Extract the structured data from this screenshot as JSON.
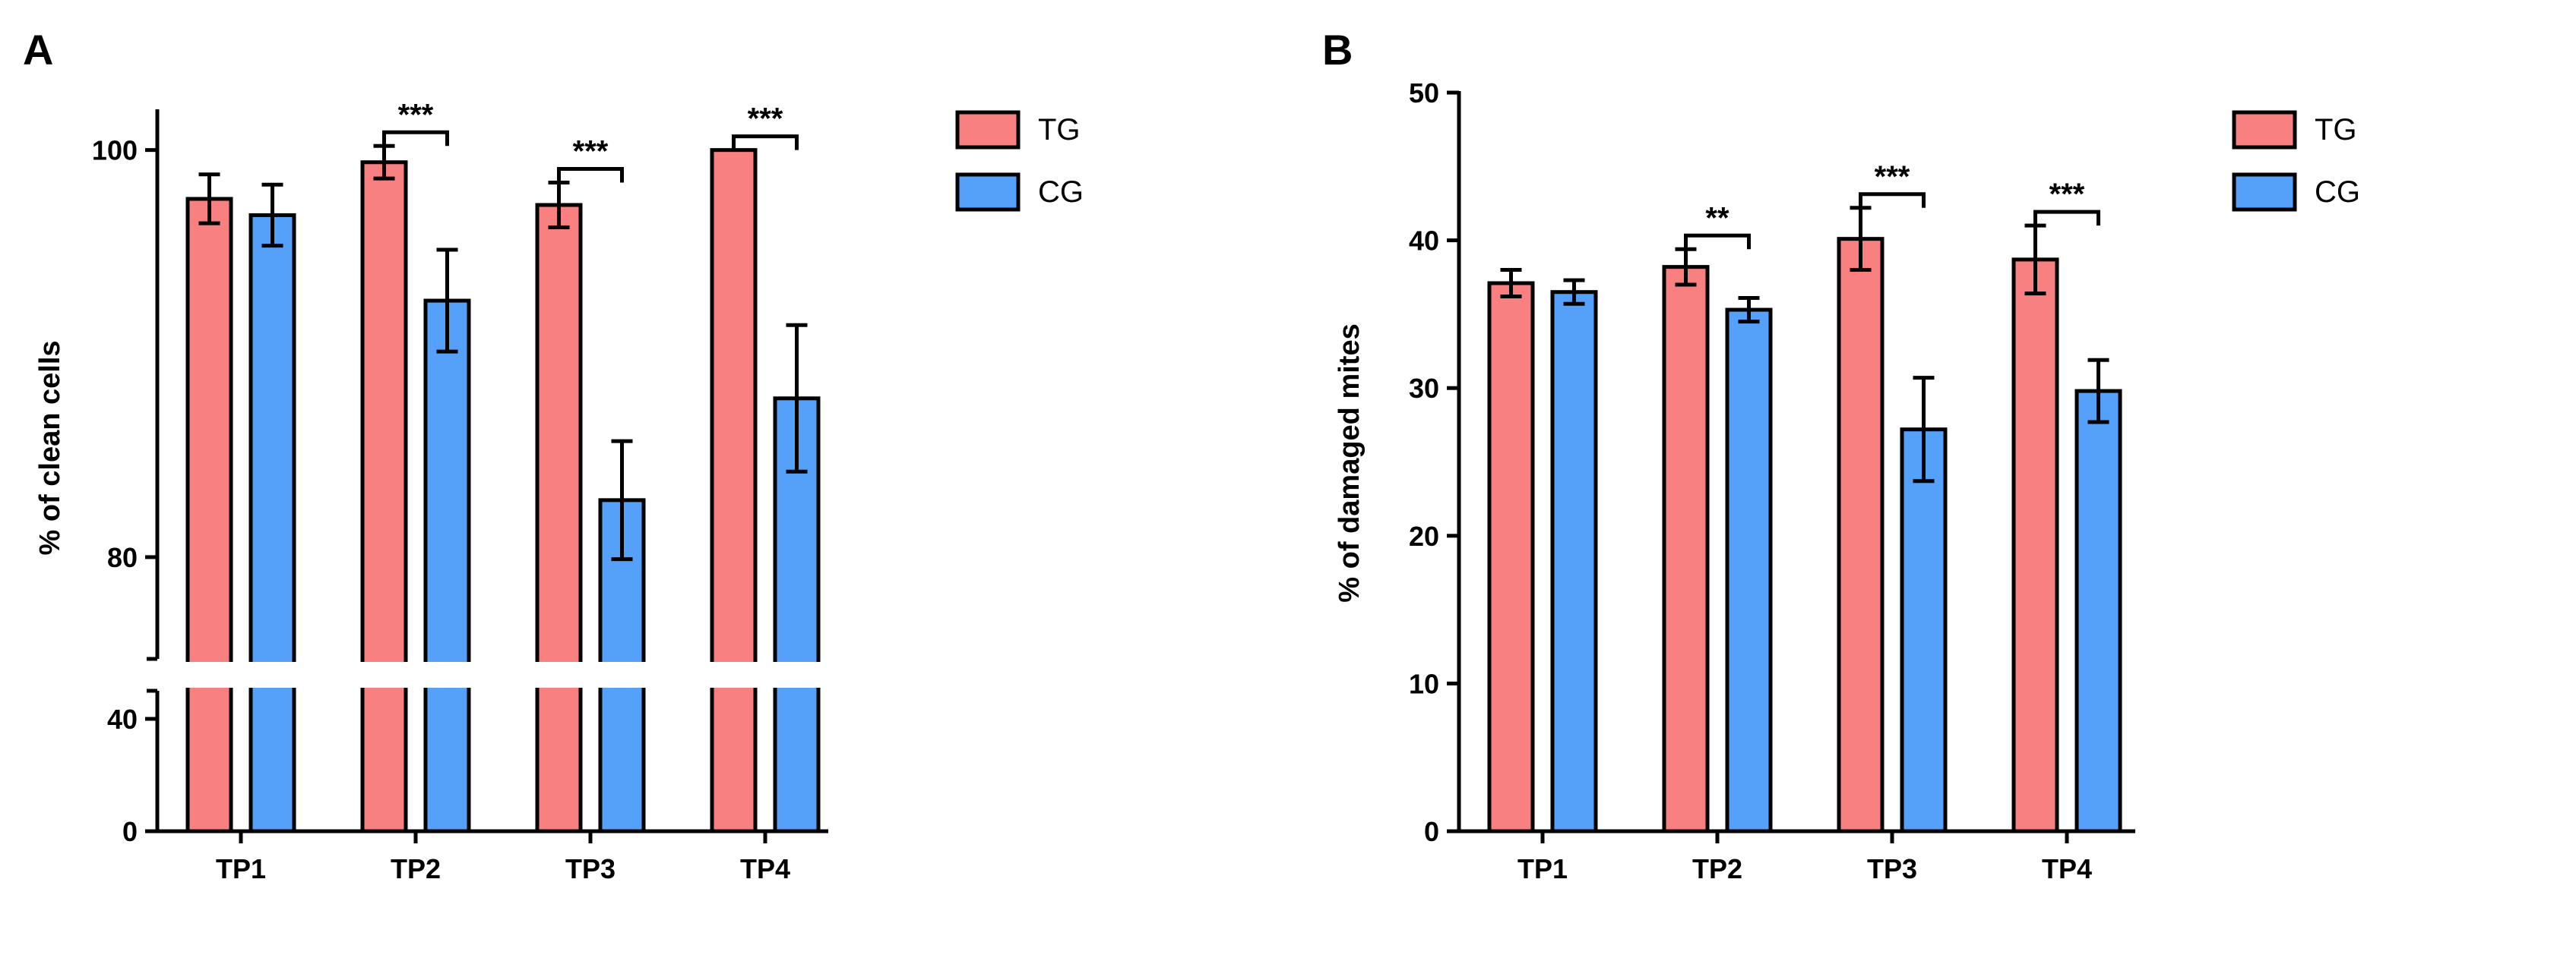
{
  "panels": [
    {
      "letter": "A",
      "colors": {
        "tg": "#f98080",
        "cg": "#55a0f8"
      }
    },
    {
      "letter": "B",
      "colors": {
        "tg": "#f98080",
        "cg": "#55a0f8"
      }
    }
  ],
  "chart_data": [
    {
      "type": "bar",
      "panel": "A",
      "title": "",
      "xlabel": "",
      "ylabel": "% of clean cells",
      "categories": [
        "TP1",
        "TP2",
        "TP3",
        "TP4"
      ],
      "series": [
        {
          "name": "TG",
          "values": [
            97.6,
            99.4,
            97.3,
            100.0
          ],
          "errors": [
            1.2,
            0.8,
            1.1,
            0.0
          ]
        },
        {
          "name": "CG",
          "values": [
            96.8,
            92.6,
            82.8,
            87.8
          ],
          "errors": [
            1.5,
            2.5,
            2.9,
            3.6
          ]
        }
      ],
      "axis_break": {
        "from": 50,
        "to": 75
      },
      "lower_segment": {
        "ylim": [
          0,
          50
        ],
        "ticks": [
          0,
          40
        ]
      },
      "upper_segment": {
        "ylim": [
          75,
          102
        ],
        "ticks": [
          80,
          100
        ]
      },
      "tick_labels": [
        "0",
        "40",
        "80",
        "100"
      ],
      "significance": [
        {
          "category": "TP2",
          "label": "***"
        },
        {
          "category": "TP3",
          "label": "***"
        },
        {
          "category": "TP4",
          "label": "***"
        }
      ],
      "legend": [
        "TG",
        "CG"
      ],
      "legend_position": "top-right outside"
    },
    {
      "type": "bar",
      "panel": "B",
      "title": "",
      "xlabel": "",
      "ylabel": "% of damaged mites",
      "categories": [
        "TP1",
        "TP2",
        "TP3",
        "TP4"
      ],
      "series": [
        {
          "name": "TG",
          "values": [
            37.1,
            38.2,
            40.1,
            38.7
          ],
          "errors": [
            0.9,
            1.2,
            2.1,
            2.3
          ]
        },
        {
          "name": "CG",
          "values": [
            36.5,
            35.3,
            27.2,
            29.8
          ],
          "errors": [
            0.8,
            0.8,
            3.5,
            2.1
          ]
        }
      ],
      "ylim": [
        0,
        50
      ],
      "ticks": [
        0,
        10,
        20,
        30,
        40,
        50
      ],
      "tick_labels": [
        "0",
        "10",
        "20",
        "30",
        "40",
        "50"
      ],
      "significance": [
        {
          "category": "TP2",
          "label": "**"
        },
        {
          "category": "TP3",
          "label": "***"
        },
        {
          "category": "TP4",
          "label": "***"
        }
      ],
      "legend": [
        "TG",
        "CG"
      ],
      "legend_position": "top-right outside"
    }
  ]
}
